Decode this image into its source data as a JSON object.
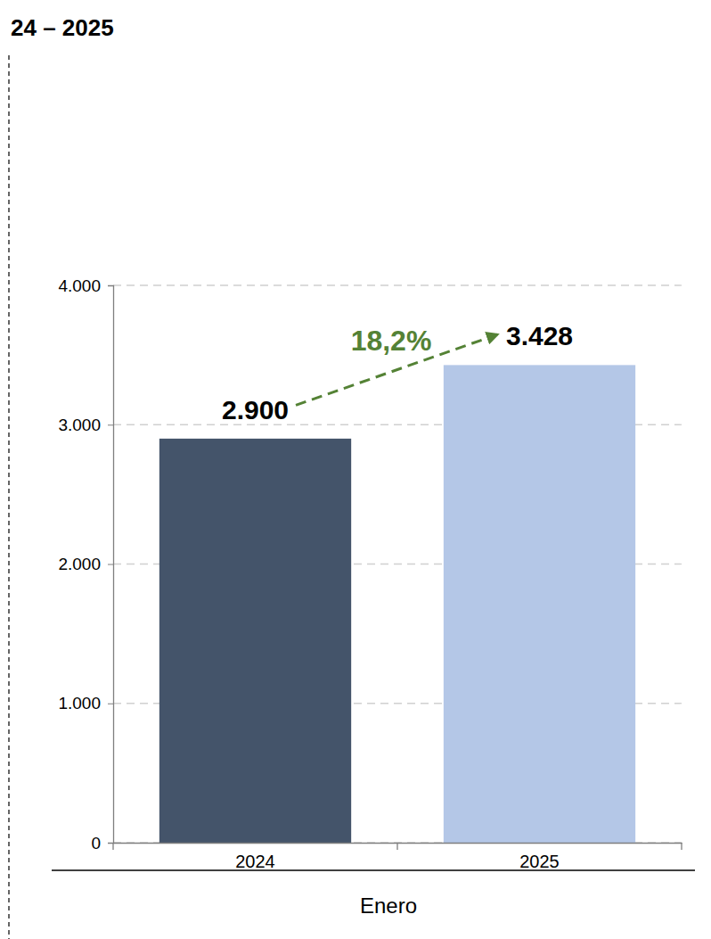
{
  "chart_data": {
    "type": "bar",
    "title": "24 – 2025",
    "xlabel": "Enero",
    "categories": [
      "2024",
      "2025"
    ],
    "values": [
      2900,
      3428
    ],
    "value_labels": [
      "2.900",
      "3.428"
    ],
    "colors": [
      "#44546a",
      "#b4c7e7"
    ],
    "ylim": [
      0,
      4000
    ],
    "yticks": [
      0,
      {
        "value": 1000,
        "label": "1.000"
      },
      {
        "value": 2000,
        "label": "2.000"
      },
      {
        "value": 3000,
        "label": "3.000"
      },
      {
        "value": 4000,
        "label": "4.000"
      }
    ],
    "grid": true,
    "data_labels": true,
    "annotations": [
      "18,2%"
    ]
  }
}
